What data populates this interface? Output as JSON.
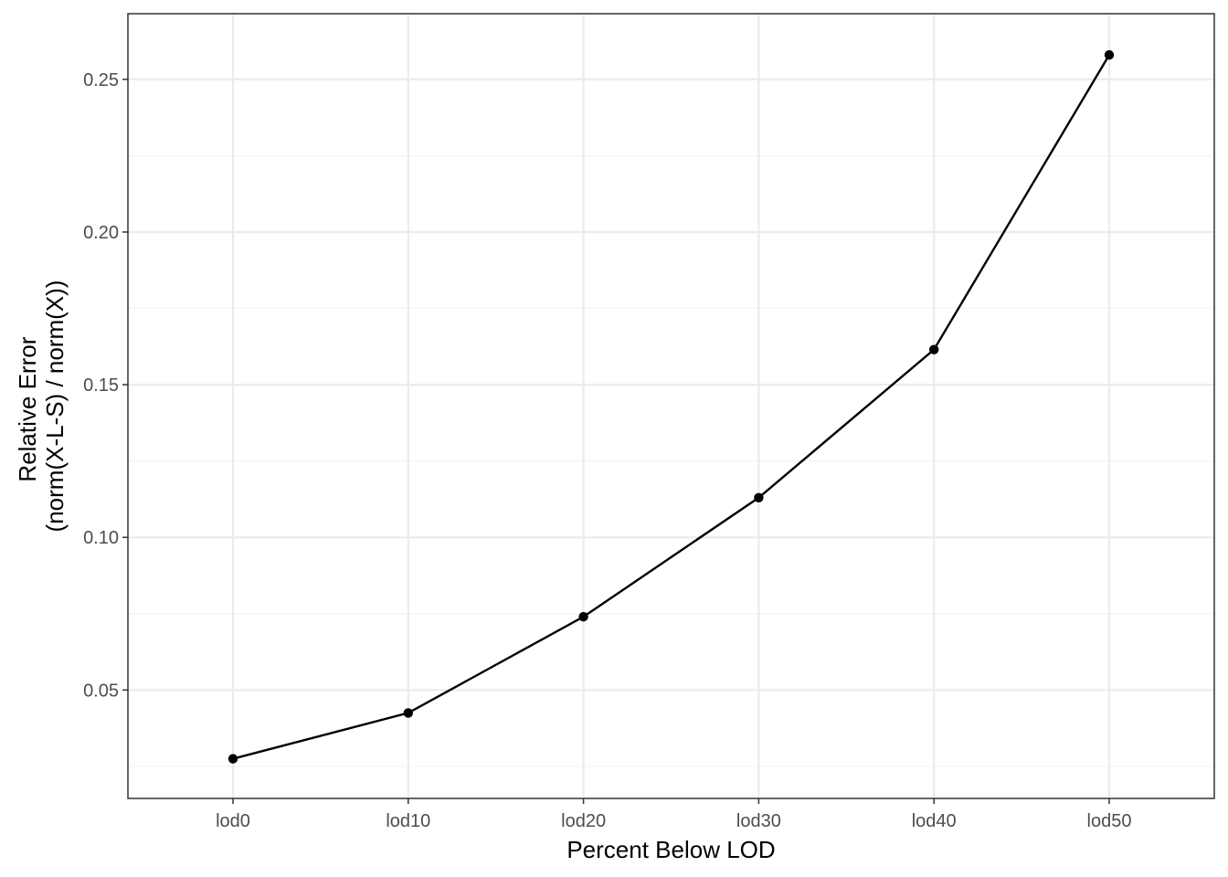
{
  "chart_data": {
    "type": "line",
    "title": "",
    "xlabel": "Percent Below LOD",
    "ylabel_lines": [
      "Relative Error",
      "(norm(X-L-S) / norm(X))"
    ],
    "categories": [
      "lod0",
      "lod10",
      "lod20",
      "lod30",
      "lod40",
      "lod50"
    ],
    "values": [
      0.0275,
      0.0425,
      0.074,
      0.113,
      0.1615,
      0.258
    ],
    "ylim": [
      0.0145,
      0.2715
    ],
    "yticks": [
      0.05,
      0.1,
      0.15,
      0.2,
      0.25
    ],
    "ytick_labels": [
      "0.05",
      "0.10",
      "0.15",
      "0.20",
      "0.25"
    ],
    "grid": true,
    "legend": "none",
    "colors": {
      "line": "#000000",
      "points": "#000000",
      "grid": "#ebebeb",
      "border": "#333333",
      "tick_text": "#4d4d4d"
    }
  }
}
